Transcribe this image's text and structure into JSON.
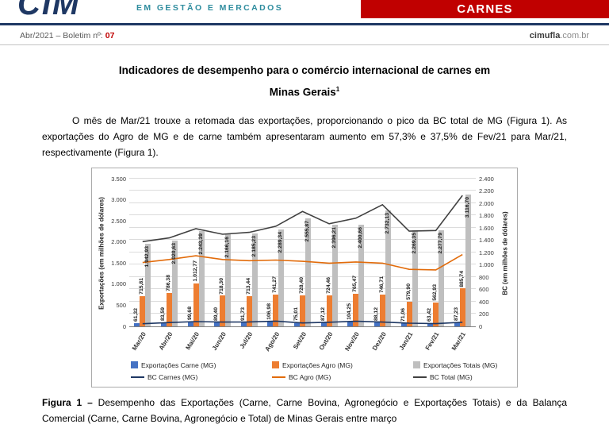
{
  "colors": {
    "brand_red": "#C00000",
    "brand_navy": "#1F3864",
    "brand_teal": "#2E8C9E"
  },
  "header": {
    "logo_text": "CIM",
    "tagline": "EM GESTÃO E MERCADOS",
    "banner_title": "CARNES",
    "issue_prefix": "Abr/2021 – Boletim nº: ",
    "issue_number": "07",
    "site_bold": "cimufla",
    "site_rest": ".com.br"
  },
  "article": {
    "title_line1": "Indicadores de desempenho para o comércio internacional de carnes em",
    "title_line2": "Minas Gerais",
    "title_sup": "1",
    "paragraph": "O mês de Mar/21 trouxe a retomada das exportações, proporcionando o pico da BC total de MG (Figura 1). As exportações do Agro de MG e de carne também apresentaram aumento em 57,3% e 37,5% de Fev/21 para Mar/21, respectivamente (Figura 1).",
    "caption_label": "Figura 1 –",
    "caption_text": " Desempenho das Exportações (Carne, Carne Bovina, Agronegócio e Exportações Totais) e da Balança Comercial (Carne, Carne Bovina, Agronegócio e Total) de Minas Gerais entre março"
  },
  "chart_data": {
    "type": "bar",
    "subtype": "grouped bars with overlay lines, dual axis",
    "legend_position": "bottom",
    "grid": true,
    "categories": [
      "Mar/20",
      "Abr/20",
      "Mai/20",
      "Jun/20",
      "Jul/20",
      "Ago/20",
      "Set/20",
      "Out/20",
      "Nov/20",
      "Dez/20",
      "Jan/21",
      "Fev/21",
      "Mar/21"
    ],
    "left_axis": {
      "label": "Exportações (em milhões de dólares)",
      "min": 0,
      "max": 3500,
      "step": 500,
      "tick_labels": [
        "0",
        "500",
        "1.000",
        "1.500",
        "2.000",
        "2.500",
        "3.000",
        "3.500"
      ]
    },
    "right_axis": {
      "label": "BC (em milhões de dólares)",
      "min": 0,
      "max": 2400,
      "step": 200,
      "tick_labels": [
        "0",
        "200",
        "400",
        "600",
        "800",
        "1.000",
        "1.200",
        "1.400",
        "1.600",
        "1.800",
        "2.000",
        "2.200",
        "2.400"
      ]
    },
    "bar_series": [
      {
        "name": "Exportações Carne (MG)",
        "color": "#4472C4",
        "axis": "left",
        "label_placement": "outside",
        "values": [
          61.32,
          83.59,
          99.68,
          89.4,
          91.73,
          106.98,
          75.01,
          87.12,
          104.25,
          88.12,
          71.06,
          63.42,
          87.23
        ],
        "labels": [
          "61,32",
          "83,59",
          "99,68",
          "89,40",
          "91,73",
          "106,98",
          "75,01",
          "87,12",
          "104,25",
          "88,12",
          "71,06",
          "63,42",
          "87,23"
        ]
      },
      {
        "name": "Exportações Agro (MG)",
        "color": "#ED7D31",
        "axis": "left",
        "label_placement": "outside",
        "values": [
          715.81,
          786.38,
          1012.77,
          718.3,
          713.44,
          741.27,
          728.4,
          724.46,
          765.47,
          746.71,
          579.9,
          562.93,
          885.74
        ],
        "labels": [
          "715,81",
          "786,38",
          "1.012,77",
          "718,30",
          "713,44",
          "741,27",
          "728,40",
          "724,46",
          "765,47",
          "746,71",
          "579,90",
          "562,93",
          "885,74"
        ]
      },
      {
        "name": "Exportações Totais (MG)",
        "color": "#BFBFBF",
        "axis": "left",
        "label_placement": "inside",
        "values": [
          1942.93,
          2020.63,
          2243.39,
          2166.16,
          2185.23,
          2289.34,
          2555.87,
          2396.21,
          2400.66,
          2732.13,
          2269.35,
          2277.79,
          3116.7
        ],
        "labels": [
          "1.942,93",
          "2.020,63",
          "2.243,39",
          "2.166,16",
          "2.185,23",
          "2.289,34",
          "2.555,87",
          "2.396,21",
          "2.400,66",
          "2.732,13",
          "2.269,35",
          "2.277,79",
          "3.116,70"
        ]
      }
    ],
    "line_series": [
      {
        "name": "BC Carnes (MG)",
        "color": "#1F3864",
        "axis": "right",
        "values": [
          55,
          75,
          90,
          82,
          85,
          98,
          68,
          80,
          95,
          82,
          64,
          57,
          80
        ]
      },
      {
        "name": "BC Agro (MG)",
        "color": "#E26B0A",
        "axis": "right",
        "values": [
          1050,
          1100,
          1160,
          1100,
          1080,
          1090,
          1070,
          1040,
          1060,
          1040,
          940,
          930,
          1180
        ]
      },
      {
        "name": "BC Total (MG)",
        "color": "#404040",
        "axis": "right",
        "values": [
          1390,
          1450,
          1600,
          1510,
          1540,
          1640,
          1880,
          1680,
          1770,
          1990,
          1560,
          1570,
          2140
        ]
      }
    ]
  }
}
